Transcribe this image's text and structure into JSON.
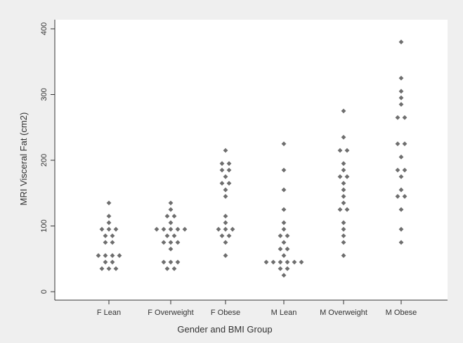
{
  "chart_data": {
    "type": "scatter",
    "subtype": "dot-strip",
    "title": "",
    "xlabel": "Gender and BMI Group",
    "ylabel": "MRI Visceral Fat (cm2)",
    "ylim": [
      -10,
      410
    ],
    "yticks": [
      0,
      100,
      200,
      300,
      400
    ],
    "grid": false,
    "categories": [
      "F Lean",
      "F Overweight",
      "F Obese",
      "M Lean",
      "M Overweight",
      "M Obese"
    ],
    "colors": {
      "marker": "#6e6e6e",
      "axis": "#333333",
      "plot_bg": "#ffffff",
      "outer_bg": "#efefef"
    },
    "groups": [
      {
        "category": "F Lean",
        "values": [
          135,
          115,
          105,
          95,
          95,
          95,
          85,
          85,
          75,
          75,
          55,
          55,
          55,
          55,
          45,
          45,
          35,
          35,
          35
        ]
      },
      {
        "category": "F Overweight",
        "values": [
          135,
          125,
          115,
          115,
          105,
          95,
          95,
          95,
          95,
          95,
          85,
          85,
          75,
          75,
          75,
          65,
          45,
          45,
          45,
          35,
          35
        ]
      },
      {
        "category": "F Obese",
        "values": [
          215,
          195,
          195,
          185,
          185,
          175,
          165,
          165,
          155,
          145,
          115,
          105,
          95,
          95,
          95,
          85,
          85,
          75,
          55
        ]
      },
      {
        "category": "M Lean",
        "values": [
          225,
          185,
          155,
          125,
          105,
          95,
          85,
          85,
          75,
          65,
          65,
          55,
          45,
          45,
          45,
          45,
          45,
          45,
          35,
          35,
          25
        ]
      },
      {
        "category": "M Overweight",
        "values": [
          275,
          235,
          215,
          215,
          195,
          185,
          175,
          175,
          165,
          155,
          145,
          135,
          125,
          125,
          105,
          95,
          85,
          75,
          55
        ]
      },
      {
        "category": "M Obese",
        "values": [
          380,
          325,
          305,
          295,
          285,
          265,
          265,
          225,
          225,
          205,
          185,
          185,
          175,
          155,
          145,
          145,
          125,
          95,
          75
        ]
      }
    ]
  }
}
